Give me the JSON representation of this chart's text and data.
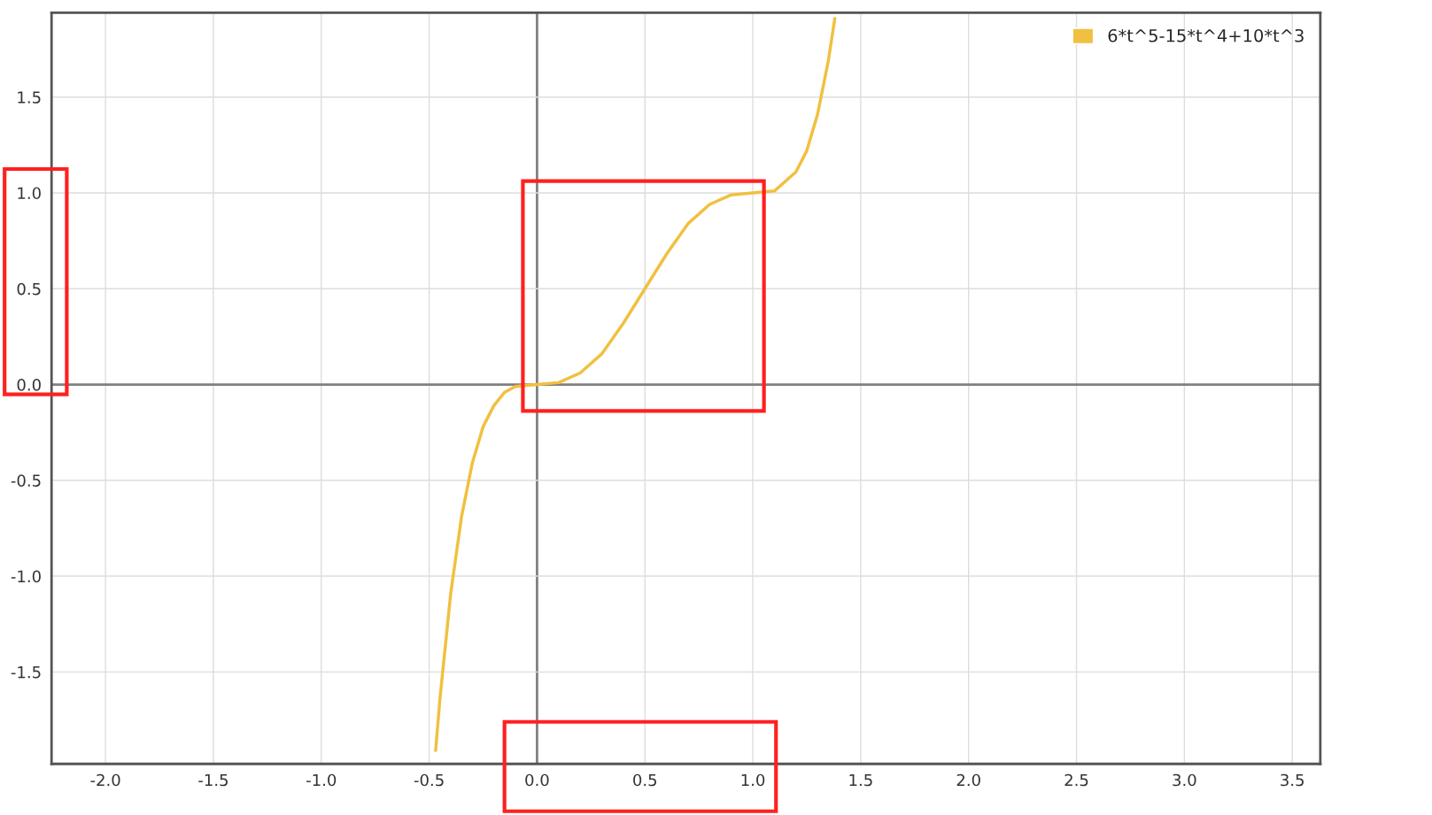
{
  "chart_data": {
    "type": "line",
    "series": [
      {
        "name": "6*t^5-15*t^4+10*t^3",
        "color": "#f0c040",
        "x": [
          -0.47,
          -0.45,
          -0.4,
          -0.35,
          -0.3,
          -0.25,
          -0.2,
          -0.15,
          -0.1,
          0,
          0.1,
          0.2,
          0.3,
          0.4,
          0.5,
          0.6,
          0.7,
          0.8,
          0.9,
          1.0,
          1.1,
          1.2,
          1.25,
          1.3,
          1.35,
          1.38
        ],
        "values": [
          -1.91,
          -1.64,
          -1.09,
          -0.69,
          -0.41,
          -0.22,
          -0.11,
          -0.04,
          -0.01,
          0,
          0.01,
          0.06,
          0.16,
          0.32,
          0.5,
          0.68,
          0.84,
          0.94,
          0.99,
          1.0,
          1.01,
          1.11,
          1.22,
          1.41,
          1.69,
          1.91
        ]
      }
    ],
    "xlim": [
      -2.25,
      3.63
    ],
    "ylim": [
      -1.98,
      1.94
    ],
    "xticks": [
      {
        "value": -2,
        "label": "-2.0"
      },
      {
        "value": -1.5,
        "label": "-1.5"
      },
      {
        "value": -1,
        "label": "-1.0"
      },
      {
        "value": -0.5,
        "label": "-0.5"
      },
      {
        "value": 0,
        "label": "0.0"
      },
      {
        "value": 0.5,
        "label": "0.5"
      },
      {
        "value": 1,
        "label": "1.0"
      },
      {
        "value": 1.5,
        "label": "1.5"
      },
      {
        "value": 2,
        "label": "2.0"
      },
      {
        "value": 2.5,
        "label": "2.5"
      },
      {
        "value": 3,
        "label": "3.0"
      },
      {
        "value": 3.5,
        "label": "3.5"
      }
    ],
    "yticks": [
      {
        "value": -1.5,
        "label": "-1.5"
      },
      {
        "value": -1,
        "label": "-1.0"
      },
      {
        "value": -0.5,
        "label": "-0.5"
      },
      {
        "value": 0,
        "label": "0.0"
      },
      {
        "value": 0.5,
        "label": "0.5"
      },
      {
        "value": 1,
        "label": "1.0"
      },
      {
        "value": 1.5,
        "label": "1.5"
      }
    ],
    "grid": true,
    "legend": "top right",
    "marker": "none",
    "line_style": "solid"
  }
}
